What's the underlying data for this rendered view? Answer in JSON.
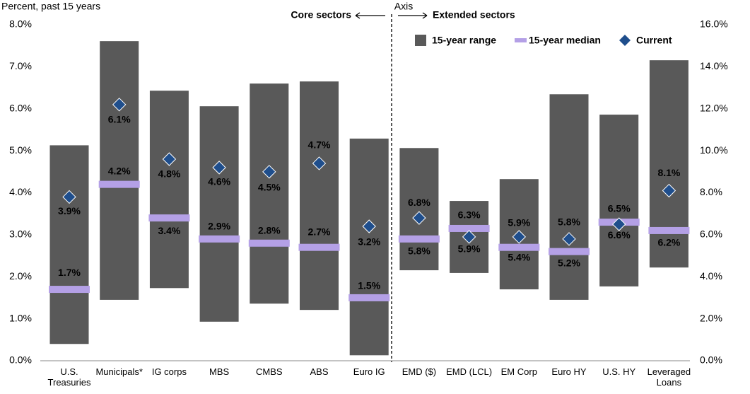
{
  "chart_data": {
    "type": "range",
    "ylabel": "Percent, past 15 years",
    "divider_label": "Axis",
    "ylim": [
      0,
      8
    ],
    "yticks": [
      {
        "value": 0,
        "label": "0.0%"
      },
      {
        "value": 1,
        "label": "1.0%"
      },
      {
        "value": 2,
        "label": "2.0%"
      },
      {
        "value": 3,
        "label": "3.0%"
      },
      {
        "value": 4,
        "label": "4.0%"
      },
      {
        "value": 5,
        "label": "5.0%"
      },
      {
        "value": 6,
        "label": "6.0%"
      },
      {
        "value": 7,
        "label": "7.0%"
      },
      {
        "value": 8,
        "label": "8.0%"
      }
    ],
    "y2lim": [
      0,
      16
    ],
    "y2ticks": [
      {
        "value": 0,
        "label": "0.0%"
      },
      {
        "value": 2,
        "label": "2.0%"
      },
      {
        "value": 4,
        "label": "4.0%"
      },
      {
        "value": 6,
        "label": "6.0%"
      },
      {
        "value": 8,
        "label": "8.0%"
      },
      {
        "value": 10,
        "label": "10.0%"
      },
      {
        "value": 12,
        "label": "12.0%"
      },
      {
        "value": 14,
        "label": "14.0%"
      },
      {
        "value": 16,
        "label": "16.0%"
      }
    ],
    "series": [
      {
        "name": "15-year range",
        "color": "#595959"
      },
      {
        "name": "15-year median",
        "color": "#b4a0e6"
      },
      {
        "name": "Current",
        "color": "#1f4e8c"
      }
    ],
    "panels": [
      {
        "title": "Core sectors",
        "axis": "y",
        "categories": [
          "U.S. Treasuries",
          "Municipals*",
          "IG corps",
          "MBS",
          "CMBS",
          "ABS",
          "Euro IG"
        ],
        "low": [
          0.4,
          1.45,
          1.73,
          0.93,
          1.36,
          1.21,
          0.13
        ],
        "high": [
          5.13,
          7.61,
          6.43,
          6.06,
          6.6,
          6.65,
          5.29
        ],
        "median": [
          1.7,
          4.2,
          3.4,
          2.9,
          2.8,
          2.7,
          1.5
        ],
        "median_labels": [
          "1.7%",
          "4.2%",
          "3.4%",
          "2.9%",
          "2.8%",
          "2.7%",
          "1.5%"
        ],
        "current": [
          3.9,
          6.1,
          4.8,
          4.6,
          4.5,
          4.7,
          3.2
        ],
        "current_labels": [
          "3.9%",
          "6.1%",
          "4.8%",
          "4.6%",
          "4.5%",
          "4.7%",
          "3.2%"
        ]
      },
      {
        "title": "Extended sectors",
        "axis": "y2",
        "categories": [
          "EMD ($)",
          "EMD (LCL)",
          "EM Corp",
          "Euro HY",
          "U.S. HY",
          "Leveraged Loans"
        ],
        "low": [
          4.31,
          4.18,
          3.4,
          2.9,
          3.54,
          4.44
        ],
        "high": [
          10.13,
          7.61,
          8.65,
          12.69,
          11.72,
          14.31
        ],
        "median": [
          5.8,
          6.3,
          5.4,
          5.2,
          6.6,
          6.2
        ],
        "median_labels": [
          "5.8%",
          "6.3%",
          "5.4%",
          "5.2%",
          "6.6%",
          "6.2%"
        ],
        "current": [
          6.8,
          5.9,
          5.9,
          5.8,
          6.5,
          8.1
        ],
        "current_labels": [
          "6.8%",
          "5.9%",
          "5.9%",
          "5.8%",
          "6.5%",
          "8.1%"
        ]
      }
    ]
  }
}
